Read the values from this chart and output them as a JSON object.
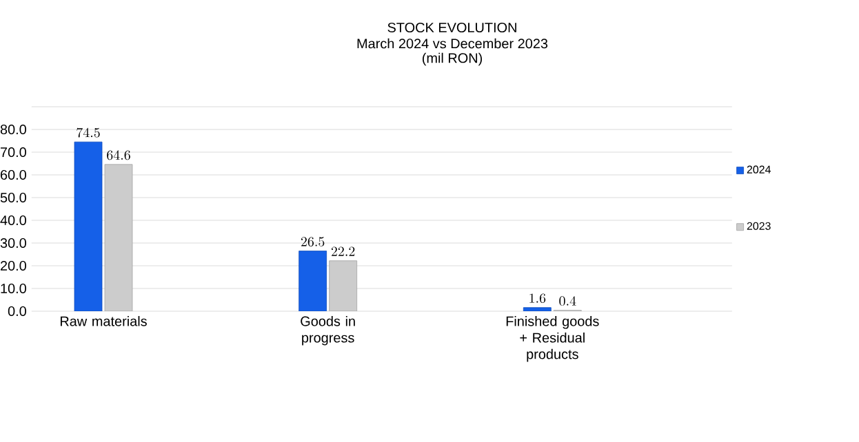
{
  "chart_data": {
    "type": "bar",
    "title": "STOCK EVOLUTION",
    "subtitle": "March 2024 vs December 2023",
    "annotations": [
      "(mil RON)"
    ],
    "categories": [
      "Raw materials",
      "Goods in progress",
      "Finished goods + Residual products"
    ],
    "series": [
      {
        "name": "2024",
        "color": "#1560e8",
        "values": [
          74.5,
          26.5,
          1.6
        ]
      },
      {
        "name": "2023",
        "color": "#cccccc",
        "values": [
          64.6,
          22.2,
          0.4
        ]
      }
    ],
    "ylim": [
      0,
      90
    ],
    "yticks": [
      {
        "value": 0,
        "label": "0.0"
      },
      {
        "value": 10,
        "label": "10.0"
      },
      {
        "value": 20,
        "label": "20.0"
      },
      {
        "value": 30,
        "label": "30.0"
      },
      {
        "value": 40,
        "label": "40.0"
      },
      {
        "value": 50,
        "label": "50.0"
      },
      {
        "value": 60,
        "label": "60.0"
      },
      {
        "value": 70,
        "label": "70.0"
      },
      {
        "value": 80,
        "label": "80.0"
      },
      {
        "value": 90,
        "label": null
      }
    ],
    "grid": "y",
    "legend": "right",
    "data_labels": true
  }
}
